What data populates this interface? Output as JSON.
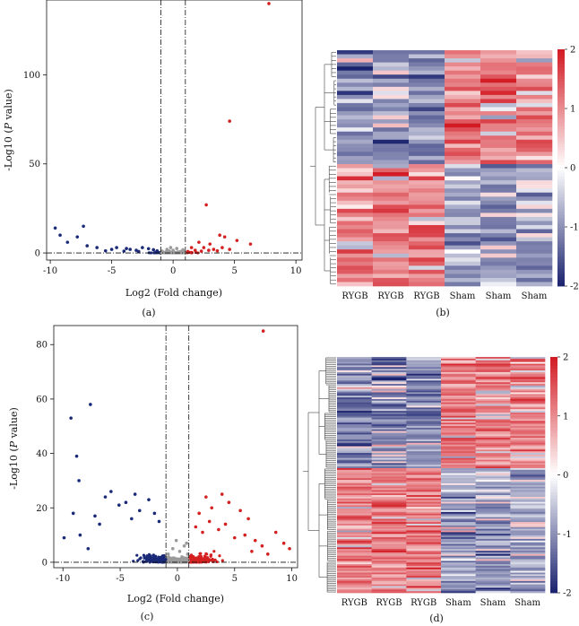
{
  "chart_data": [
    {
      "panel": "(a)",
      "type": "scatter",
      "xlabel": "Log2 (Fold change)",
      "ylabel_prefix": "-Log10 (",
      "ylabel_italic": "P",
      "ylabel_suffix": " value)",
      "xlim": [
        -10.3,
        10.5
      ],
      "ylim": [
        -4,
        142
      ],
      "xticks": [
        -10,
        -5,
        0,
        5,
        10
      ],
      "yticks": [
        0,
        50,
        100
      ],
      "vlines": [
        -1,
        1
      ],
      "hline": 0,
      "colors": {
        "down": "#1a2a78",
        "up": "#d42020",
        "ns": "#9a9a9a"
      },
      "series": [
        {
          "name": "up",
          "points": [
            [
              7.8,
              140
            ],
            [
              4.6,
              74
            ],
            [
              2.7,
              27
            ],
            [
              3.8,
              10
            ],
            [
              4.2,
              9
            ],
            [
              5.2,
              7
            ],
            [
              6.3,
              5
            ],
            [
              2.1,
              6
            ],
            [
              3.0,
              5
            ],
            [
              1.5,
              3
            ],
            [
              2.5,
              3
            ],
            [
              3.3,
              2
            ],
            [
              4.0,
              3
            ],
            [
              1.8,
              1.5
            ],
            [
              2.3,
              1
            ],
            [
              3.6,
              1.2
            ],
            [
              1.2,
              0.8
            ],
            [
              2.9,
              1.5
            ],
            [
              4.6,
              2
            ]
          ]
        },
        {
          "name": "down",
          "points": [
            [
              -9.6,
              14
            ],
            [
              -7.3,
              15
            ],
            [
              -9.2,
              10
            ],
            [
              -7.8,
              9
            ],
            [
              -8.6,
              6
            ],
            [
              -7.0,
              4
            ],
            [
              -6.2,
              3
            ],
            [
              -5.0,
              2
            ],
            [
              -4.6,
              3
            ],
            [
              -3.5,
              2
            ],
            [
              -3.0,
              1.5
            ],
            [
              -2.5,
              3
            ],
            [
              -2.0,
              2.4
            ],
            [
              -1.6,
              1.8
            ],
            [
              -4.0,
              1
            ],
            [
              -5.5,
              1.2
            ],
            [
              -1.3,
              1.2
            ],
            [
              -2.8,
              0.8
            ],
            [
              -3.8,
              2.5
            ]
          ]
        },
        {
          "name": "ns",
          "points": [
            [
              -0.9,
              1
            ],
            [
              -0.5,
              2
            ],
            [
              0,
              1.5
            ],
            [
              0.4,
              0.6
            ],
            [
              0.8,
              1.8
            ],
            [
              -0.2,
              3
            ],
            [
              0.3,
              2.5
            ],
            [
              -0.6,
              0.5
            ],
            [
              0.6,
              0.8
            ],
            [
              0.1,
              0.3
            ],
            [
              -0.3,
              1.1
            ],
            [
              0.9,
              0.4
            ]
          ]
        }
      ]
    },
    {
      "panel": "(b)",
      "type": "heatmap",
      "columns": [
        "RYGB",
        "RYGB",
        "RYGB",
        "Sham",
        "Sham",
        "Sham"
      ],
      "n_rows": 58,
      "cluster_split": 28,
      "color_ticks": [
        2,
        1,
        0,
        -1,
        -2
      ],
      "seed": 11
    },
    {
      "panel": "(c)",
      "type": "scatter",
      "xlabel": "Log2 (Fold change)",
      "ylabel_prefix": "-Log10 (",
      "ylabel_italic": "P",
      "ylabel_suffix": " value)",
      "xlim": [
        -10.8,
        10.5
      ],
      "ylim": [
        -2,
        87
      ],
      "xticks": [
        -10,
        -5,
        0,
        5,
        10
      ],
      "yticks": [
        0,
        20,
        40,
        60,
        80
      ],
      "vlines": [
        -1,
        1
      ],
      "hline": 0,
      "colors": {
        "down": "#1a2a78",
        "up": "#d42020",
        "ns": "#9a9a9a"
      },
      "series": [
        {
          "name": "up",
          "points": [
            [
              7.5,
              85
            ],
            [
              3.9,
              25
            ],
            [
              2.5,
              24
            ],
            [
              4.5,
              22
            ],
            [
              3.0,
              20
            ],
            [
              5.5,
              19
            ],
            [
              6.2,
              16
            ],
            [
              1.9,
              18
            ],
            [
              2.8,
              15
            ],
            [
              9.3,
              7
            ],
            [
              8.6,
              11
            ],
            [
              9.8,
              5
            ],
            [
              7.4,
              6
            ],
            [
              6.8,
              8
            ],
            [
              5.9,
              10
            ],
            [
              4.2,
              14
            ],
            [
              3.6,
              12
            ],
            [
              2.2,
              11
            ],
            [
              1.6,
              13
            ],
            [
              5.0,
              9
            ],
            [
              6.5,
              4
            ],
            [
              7.9,
              3
            ]
          ]
        },
        {
          "name": "down",
          "points": [
            [
              -9.3,
              53
            ],
            [
              -7.6,
              58
            ],
            [
              -8.8,
              39
            ],
            [
              -8.6,
              30
            ],
            [
              -9.1,
              18
            ],
            [
              -5.8,
              26
            ],
            [
              -3.7,
              25
            ],
            [
              -6.3,
              24
            ],
            [
              -4.5,
              22
            ],
            [
              -2.5,
              23
            ],
            [
              -5.1,
              21
            ],
            [
              -7.2,
              17
            ],
            [
              -6.8,
              14
            ],
            [
              -3.3,
              19
            ],
            [
              -4.0,
              16
            ],
            [
              -9.9,
              9
            ],
            [
              -8.5,
              10
            ],
            [
              -7.8,
              5
            ],
            [
              -2.0,
              18
            ],
            [
              -1.6,
              15
            ]
          ]
        },
        {
          "name": "ns",
          "points": [
            [
              -0.8,
              3
            ],
            [
              -0.4,
              5
            ],
            [
              0.2,
              4
            ],
            [
              0.6,
              6
            ],
            [
              -0.1,
              8
            ],
            [
              0.4,
              2
            ],
            [
              0.8,
              7
            ],
            [
              -0.6,
              1
            ],
            [
              0.0,
              1
            ],
            [
              0.9,
              3
            ]
          ]
        }
      ],
      "cloud_seed": 7
    },
    {
      "panel": "(d)",
      "type": "heatmap",
      "columns": [
        "RYGB",
        "RYGB",
        "RYGB",
        "Sham",
        "Sham",
        "Sham"
      ],
      "n_rows": 140,
      "cluster_split": 66,
      "color_ticks": [
        2,
        1,
        0,
        -1,
        -2
      ],
      "seed": 29
    }
  ],
  "panel_labels": {
    "a": "(a)",
    "b": "(b)",
    "c": "(c)",
    "d": "(d)"
  }
}
